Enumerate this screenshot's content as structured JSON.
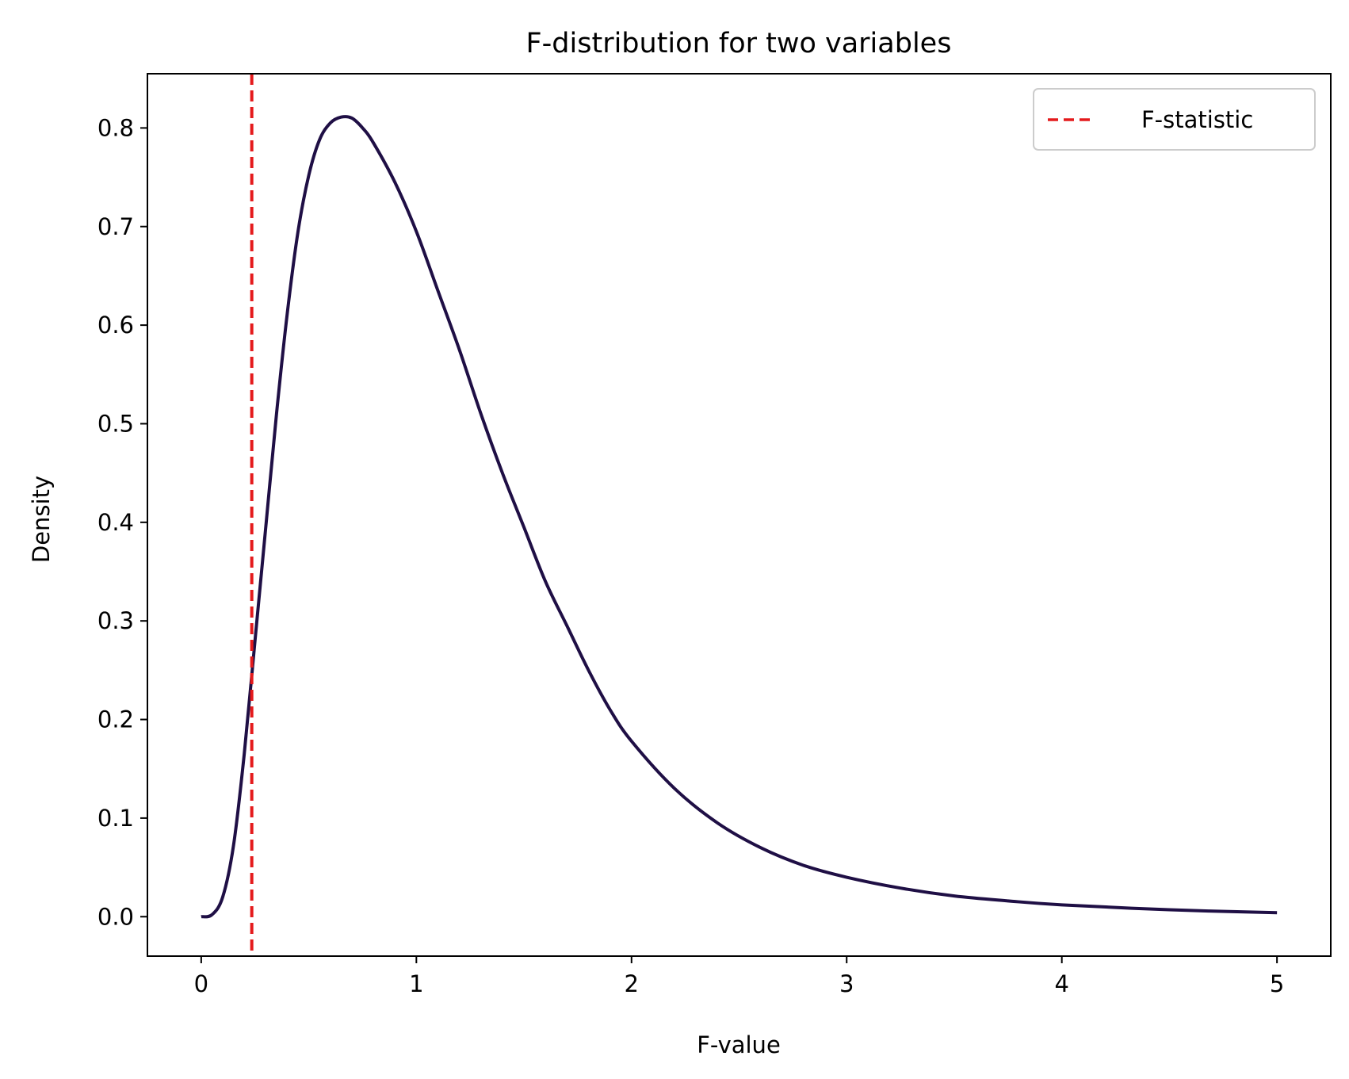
{
  "chart_data": {
    "type": "line",
    "title": "F-distribution for two variables",
    "xlabel": "F-value",
    "ylabel": "Density",
    "xlim": [
      -0.25,
      5.25
    ],
    "ylim": [
      -0.04,
      0.855
    ],
    "x_ticks": [
      0,
      1,
      2,
      3,
      4,
      5
    ],
    "y_ticks": [
      0.0,
      0.1,
      0.2,
      0.3,
      0.4,
      0.5,
      0.6,
      0.7,
      0.8
    ],
    "x_tick_labels": [
      "0",
      "1",
      "2",
      "3",
      "4",
      "5"
    ],
    "y_tick_labels": [
      "0.0",
      "0.1",
      "0.2",
      "0.3",
      "0.4",
      "0.5",
      "0.6",
      "0.7",
      "0.8"
    ],
    "grid": false,
    "legend": {
      "position": "top-right",
      "entries": [
        "F-statistic"
      ]
    },
    "series": [
      {
        "kind": "line",
        "color": "#1f0f45",
        "x": [
          0,
          0.05,
          0.1,
          0.15,
          0.2,
          0.25,
          0.3,
          0.35,
          0.4,
          0.45,
          0.5,
          0.55,
          0.6,
          0.65,
          0.7,
          0.75,
          0.8,
          0.9,
          1.0,
          1.1,
          1.2,
          1.3,
          1.4,
          1.5,
          1.6,
          1.7,
          1.8,
          1.9,
          2.0,
          2.2,
          2.4,
          2.6,
          2.8,
          3.0,
          3.25,
          3.5,
          3.75,
          4.0,
          4.5,
          5.0
        ],
        "y": [
          0,
          0.002,
          0.02,
          0.072,
          0.165,
          0.28,
          0.395,
          0.51,
          0.612,
          0.695,
          0.752,
          0.788,
          0.805,
          0.811,
          0.81,
          0.8,
          0.785,
          0.745,
          0.695,
          0.635,
          0.575,
          0.51,
          0.45,
          0.395,
          0.34,
          0.295,
          0.25,
          0.21,
          0.178,
          0.13,
          0.095,
          0.07,
          0.052,
          0.04,
          0.029,
          0.021,
          0.016,
          0.012,
          0.007,
          0.004
        ]
      },
      {
        "kind": "vline",
        "name": "F-statistic",
        "color": "#e41a1c",
        "x": 0.235,
        "dashed": true
      }
    ]
  }
}
